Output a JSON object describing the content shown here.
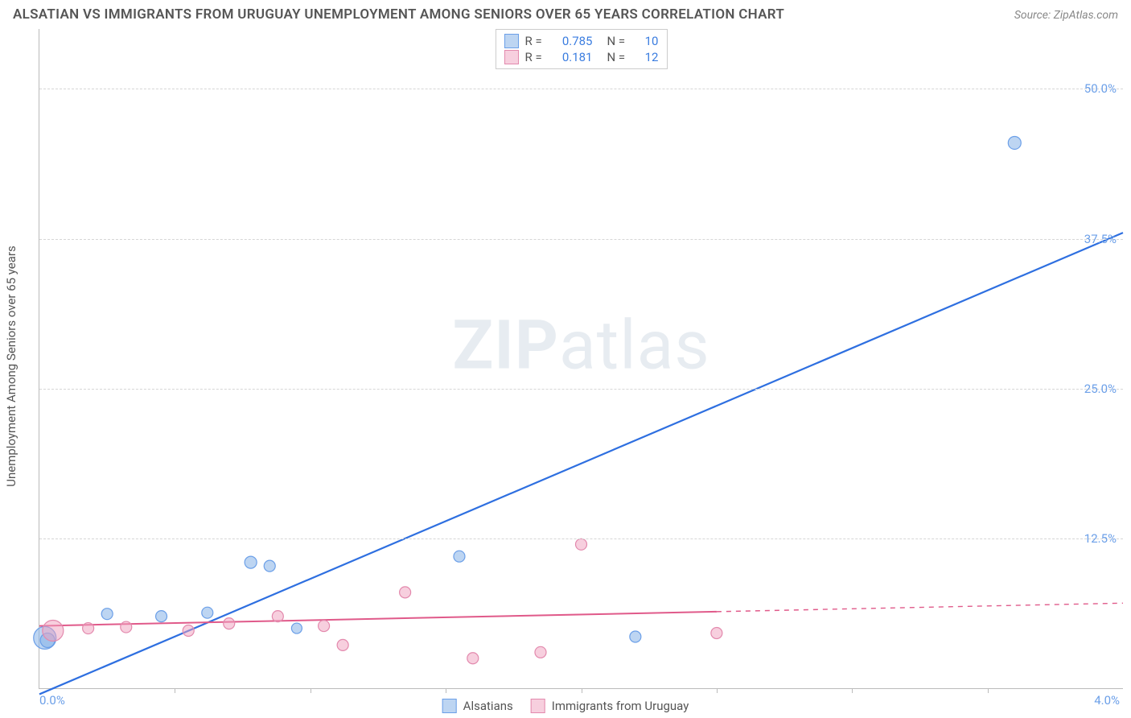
{
  "title": "ALSATIAN VS IMMIGRANTS FROM URUGUAY UNEMPLOYMENT AMONG SENIORS OVER 65 YEARS CORRELATION CHART",
  "source": "Source: ZipAtlas.com",
  "y_axis_label": "Unemployment Among Seniors over 65 years",
  "watermark_a": "ZIP",
  "watermark_b": "atlas",
  "chart": {
    "type": "scatter",
    "xlim": [
      0.0,
      4.0
    ],
    "ylim": [
      0.0,
      55.0
    ],
    "x_ticks_minor": [
      0.5,
      1.0,
      1.5,
      2.0,
      2.5,
      3.0,
      3.5
    ],
    "x_tick_labels": [
      {
        "x": 0.0,
        "label": "0.0%"
      },
      {
        "x": 4.0,
        "label": "4.0%"
      }
    ],
    "y_gridlines": [
      12.5,
      25.0,
      37.5,
      50.0
    ],
    "y_tick_labels": [
      {
        "y": 12.5,
        "label": "12.5%"
      },
      {
        "y": 25.0,
        "label": "25.0%"
      },
      {
        "y": 37.5,
        "label": "37.5%"
      },
      {
        "y": 50.0,
        "label": "50.0%"
      }
    ],
    "background_color": "#ffffff",
    "grid_color": "#d6d6d6",
    "series": [
      {
        "name": "Alsatians",
        "color_fill": "rgba(135,178,232,0.55)",
        "color_stroke": "#6b9fe8",
        "line_color": "#2e6fe0",
        "line_width": 2.2,
        "points": [
          {
            "x": 0.02,
            "y": 4.2,
            "r": 14
          },
          {
            "x": 0.03,
            "y": 4.0,
            "r": 9
          },
          {
            "x": 0.25,
            "y": 6.2,
            "r": 7
          },
          {
            "x": 0.45,
            "y": 6.0,
            "r": 7
          },
          {
            "x": 0.62,
            "y": 6.3,
            "r": 7
          },
          {
            "x": 0.78,
            "y": 10.5,
            "r": 7.5
          },
          {
            "x": 0.85,
            "y": 10.2,
            "r": 7
          },
          {
            "x": 0.95,
            "y": 5.0,
            "r": 6.5
          },
          {
            "x": 1.55,
            "y": 11.0,
            "r": 7
          },
          {
            "x": 2.2,
            "y": 4.3,
            "r": 7
          },
          {
            "x": 3.6,
            "y": 45.5,
            "r": 8
          }
        ],
        "trend": {
          "x1": 0.0,
          "y1": -0.5,
          "x2": 4.0,
          "y2": 38.0,
          "dash_from_x": null
        }
      },
      {
        "name": "Immigrants from Uruguay",
        "color_fill": "rgba(240,160,190,0.5)",
        "color_stroke": "#e389ad",
        "line_color": "#e05a8a",
        "line_width": 2.0,
        "points": [
          {
            "x": 0.05,
            "y": 4.8,
            "r": 13
          },
          {
            "x": 0.18,
            "y": 5.0,
            "r": 7
          },
          {
            "x": 0.32,
            "y": 5.1,
            "r": 7
          },
          {
            "x": 0.55,
            "y": 4.8,
            "r": 7
          },
          {
            "x": 0.7,
            "y": 5.4,
            "r": 7
          },
          {
            "x": 0.88,
            "y": 6.0,
            "r": 7
          },
          {
            "x": 1.05,
            "y": 5.2,
            "r": 7
          },
          {
            "x": 1.12,
            "y": 3.6,
            "r": 7
          },
          {
            "x": 1.35,
            "y": 8.0,
            "r": 7
          },
          {
            "x": 1.6,
            "y": 2.5,
            "r": 7
          },
          {
            "x": 1.85,
            "y": 3.0,
            "r": 7
          },
          {
            "x": 2.0,
            "y": 12.0,
            "r": 7
          },
          {
            "x": 2.5,
            "y": 4.6,
            "r": 7
          }
        ],
        "trend": {
          "x1": 0.0,
          "y1": 5.2,
          "x2": 4.0,
          "y2": 7.1,
          "dash_from_x": 2.5
        }
      }
    ]
  },
  "legend_top": [
    {
      "swatch_fill": "rgba(135,178,232,0.55)",
      "swatch_stroke": "#6b9fe8",
      "r_label": "R =",
      "r_value": "0.785",
      "n_label": "N =",
      "n_value": "10"
    },
    {
      "swatch_fill": "rgba(240,160,190,0.5)",
      "swatch_stroke": "#e389ad",
      "r_label": "R =",
      "r_value": "0.181",
      "n_label": "N =",
      "n_value": "12"
    }
  ],
  "legend_bottom": [
    {
      "swatch_fill": "rgba(135,178,232,0.55)",
      "swatch_stroke": "#6b9fe8",
      "label": "Alsatians"
    },
    {
      "swatch_fill": "rgba(240,160,190,0.5)",
      "swatch_stroke": "#e389ad",
      "label": "Immigrants from Uruguay"
    }
  ]
}
